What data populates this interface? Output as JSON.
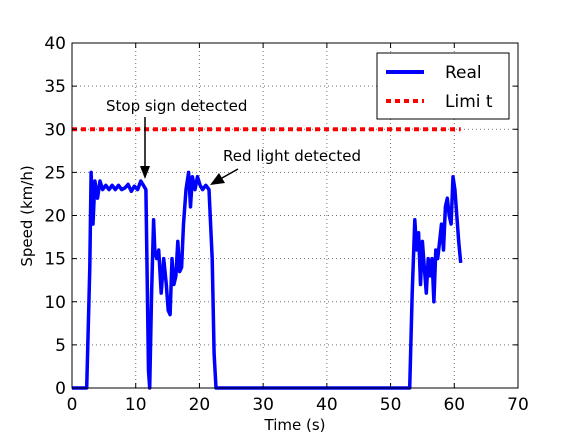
{
  "chart_data": {
    "type": "line",
    "xlabel": "Time  (s)",
    "ylabel": "Speed  (km/h)",
    "xlim": [
      0,
      70
    ],
    "ylim": [
      0,
      40
    ],
    "xticks": [
      "0",
      "10",
      "20",
      "30",
      "40",
      "50",
      "60",
      "70"
    ],
    "yticks": [
      "0",
      "5",
      "10",
      "15",
      "20",
      "25",
      "30",
      "35",
      "40"
    ],
    "grid": true,
    "legend_position": "top-right",
    "series": [
      {
        "name": "Real",
        "color": "#0000ff",
        "style": "solid",
        "x": [
          0,
          2.3,
          2.8,
          3.0,
          3.3,
          3.6,
          4.0,
          4.4,
          4.8,
          5.3,
          5.8,
          6.3,
          6.8,
          7.3,
          7.8,
          8.3,
          8.8,
          9.3,
          9.8,
          10.3,
          10.8,
          11.2,
          11.6,
          12.0,
          12.2,
          12.5,
          12.8,
          13.0,
          13.3,
          13.6,
          14.0,
          14.4,
          14.8,
          15.1,
          15.4,
          15.7,
          16.0,
          16.3,
          16.6,
          16.9,
          17.2,
          17.5,
          17.9,
          18.3,
          18.6,
          18.9,
          19.3,
          19.7,
          20.1,
          20.5,
          21.0,
          21.5,
          22.0,
          22.3,
          22.6,
          23.0,
          53.0,
          53.4,
          53.8,
          54.1,
          54.4,
          54.7,
          55.0,
          55.3,
          55.6,
          55.9,
          56.2,
          56.5,
          56.8,
          57.1,
          57.4,
          57.7,
          58.0,
          58.3,
          58.6,
          58.9,
          59.2,
          59.5,
          59.8,
          60.1,
          60.4,
          60.7,
          61.0
        ],
        "y": [
          0,
          0,
          14,
          25,
          19,
          24,
          22,
          24,
          23,
          23.5,
          23,
          23.5,
          23,
          23.5,
          23,
          23.2,
          23.6,
          22.8,
          23.4,
          23,
          24,
          23.5,
          23,
          2,
          0,
          11,
          19.5,
          16,
          15,
          16,
          11,
          15,
          12,
          9,
          8.5,
          15,
          12,
          13,
          17,
          13.5,
          14,
          19,
          23,
          25,
          21,
          24.5,
          23,
          24.5,
          23.5,
          23,
          23.5,
          23,
          15,
          4,
          0,
          0,
          0,
          11,
          19.5,
          16,
          18,
          12,
          17,
          14,
          11,
          15,
          13,
          15,
          10,
          16,
          15,
          17,
          19,
          16,
          21,
          22,
          20,
          19,
          24.5,
          23,
          20,
          17,
          14.5
        ]
      },
      {
        "name": "Limi t",
        "color": "#ff0000",
        "style": "dashed",
        "x": [
          0,
          61
        ],
        "y": [
          30,
          30
        ]
      }
    ],
    "annotations": [
      {
        "text": "Stop  sign  detected",
        "tip": [
          11.5,
          24
        ]
      },
      {
        "text": "Red  light  detected",
        "tip": [
          21.2,
          23.8
        ]
      }
    ]
  }
}
